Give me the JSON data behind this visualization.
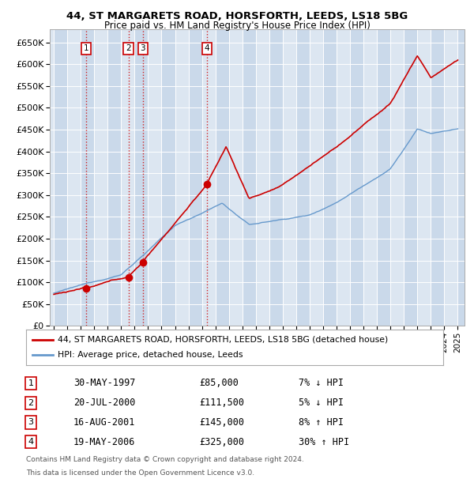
{
  "title1": "44, ST MARGARETS ROAD, HORSFORTH, LEEDS, LS18 5BG",
  "title2": "Price paid vs. HM Land Registry's House Price Index (HPI)",
  "ylim": [
    0,
    680000
  ],
  "yticks": [
    0,
    50000,
    100000,
    150000,
    200000,
    250000,
    300000,
    350000,
    400000,
    450000,
    500000,
    550000,
    600000,
    650000
  ],
  "ytick_labels": [
    "£0",
    "£50K",
    "£100K",
    "£150K",
    "£200K",
    "£250K",
    "£300K",
    "£350K",
    "£400K",
    "£450K",
    "£500K",
    "£550K",
    "£600K",
    "£650K"
  ],
  "xlim_start": 1994.7,
  "xlim_end": 2025.5,
  "sale_dates": [
    1997.41,
    2000.55,
    2001.62,
    2006.38
  ],
  "sale_prices": [
    85000,
    111500,
    145000,
    325000
  ],
  "sale_labels": [
    "1",
    "2",
    "3",
    "4"
  ],
  "sale_info": [
    {
      "label": "1",
      "date": "30-MAY-1997",
      "price": "£85,000",
      "hpi": "7% ↓ HPI"
    },
    {
      "label": "2",
      "date": "20-JUL-2000",
      "price": "£111,500",
      "hpi": "5% ↓ HPI"
    },
    {
      "label": "3",
      "date": "16-AUG-2001",
      "price": "£145,000",
      "hpi": "8% ↑ HPI"
    },
    {
      "label": "4",
      "date": "19-MAY-2006",
      "price": "£325,000",
      "hpi": "30% ↑ HPI"
    }
  ],
  "legend_line1": "44, ST MARGARETS ROAD, HORSFORTH, LEEDS, LS18 5BG (detached house)",
  "legend_line2": "HPI: Average price, detached house, Leeds",
  "footer1": "Contains HM Land Registry data © Crown copyright and database right 2024.",
  "footer2": "This data is licensed under the Open Government Licence v3.0.",
  "red_color": "#cc0000",
  "blue_color": "#6699cc",
  "bg_color": "#dce6f1",
  "bg_color2": "#cad9ea",
  "grid_color": "#ffffff",
  "fig_color": "#f0f0f0"
}
